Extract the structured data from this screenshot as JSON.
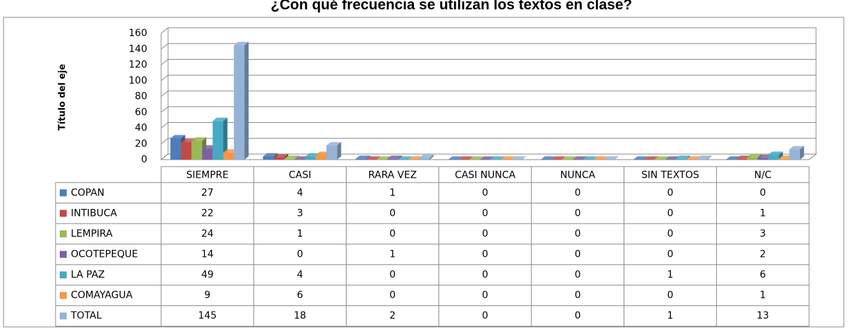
{
  "chart_data": {
    "type": "bar3d",
    "title": "¿Con qué frecuencia se utilizan los textos en clase?",
    "y_axis_label": "Título del eje",
    "categories": [
      "SIEMPRE",
      "CASI",
      "RARA VEZ",
      "CASI NUNCA",
      "NUNCA",
      "SIN TEXTOS",
      "N/C"
    ],
    "series": [
      {
        "name": "COPAN",
        "color": "#4a7ebb",
        "values": [
          27,
          4,
          1,
          0,
          0,
          0,
          0
        ]
      },
      {
        "name": "INTIBUCA",
        "color": "#be4b48",
        "values": [
          22,
          3,
          0,
          0,
          0,
          0,
          1
        ]
      },
      {
        "name": "LEMPIRA",
        "color": "#98b954",
        "values": [
          24,
          1,
          0,
          0,
          0,
          0,
          3
        ]
      },
      {
        "name": "OCOTEPEQUE",
        "color": "#7d60a0",
        "values": [
          14,
          0,
          1,
          0,
          0,
          0,
          2
        ]
      },
      {
        "name": "LA PAZ",
        "color": "#46aac5",
        "values": [
          49,
          4,
          0,
          0,
          0,
          1,
          6
        ]
      },
      {
        "name": "COMAYAGUA",
        "color": "#f79646",
        "values": [
          9,
          6,
          0,
          0,
          0,
          0,
          1
        ]
      },
      {
        "name": "TOTAL",
        "color": "#95b3d7",
        "values": [
          145,
          18,
          2,
          0,
          0,
          1,
          13
        ]
      }
    ],
    "ylim": [
      0,
      160
    ],
    "yticks": [
      0,
      20,
      40,
      60,
      80,
      100,
      120,
      140,
      160
    ],
    "grid": true,
    "data_table": true
  }
}
